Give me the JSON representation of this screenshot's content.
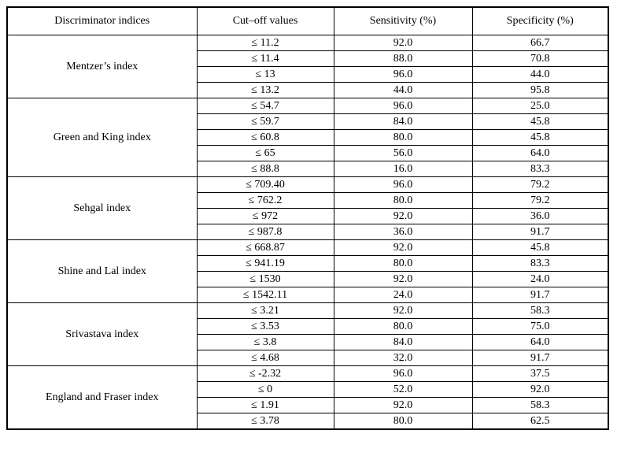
{
  "colors": {
    "border": "#000000",
    "background": "#ffffff",
    "text": "#000000"
  },
  "table": {
    "headers": {
      "indices": "Discriminator indices",
      "cutoff": "Cut–off values",
      "sensitivity": "Sensitivity (%)",
      "specificity": "Specificity (%)"
    },
    "groups": [
      {
        "index": "Mentzer’s index",
        "rows": [
          {
            "cutoff": "≤ 11.2",
            "sensitivity": "92.0",
            "specificity": "66.7"
          },
          {
            "cutoff": "≤ 11.4",
            "sensitivity": "88.0",
            "specificity": "70.8"
          },
          {
            "cutoff": "≤ 13",
            "sensitivity": "96.0",
            "specificity": "44.0"
          },
          {
            "cutoff": "≤ 13.2",
            "sensitivity": "44.0",
            "specificity": "95.8"
          }
        ]
      },
      {
        "index": "Green and King index",
        "rows": [
          {
            "cutoff": "≤ 54.7",
            "sensitivity": "96.0",
            "specificity": "25.0"
          },
          {
            "cutoff": "≤ 59.7",
            "sensitivity": "84.0",
            "specificity": "45.8"
          },
          {
            "cutoff": "≤ 60.8",
            "sensitivity": "80.0",
            "specificity": "45.8"
          },
          {
            "cutoff": "≤ 65",
            "sensitivity": "56.0",
            "specificity": "64.0"
          },
          {
            "cutoff": "≤ 88.8",
            "sensitivity": "16.0",
            "specificity": "83.3"
          }
        ]
      },
      {
        "index": "Sehgal index",
        "rows": [
          {
            "cutoff": "≤ 709.40",
            "sensitivity": "96.0",
            "specificity": "79.2"
          },
          {
            "cutoff": "≤ 762.2",
            "sensitivity": "80.0",
            "specificity": "79.2"
          },
          {
            "cutoff": "≤ 972",
            "sensitivity": "92.0",
            "specificity": "36.0"
          },
          {
            "cutoff": "≤ 987.8",
            "sensitivity": "36.0",
            "specificity": "91.7"
          }
        ]
      },
      {
        "index": "Shine and Lal index",
        "rows": [
          {
            "cutoff": "≤ 668.87",
            "sensitivity": "92.0",
            "specificity": "45.8"
          },
          {
            "cutoff": "≤ 941.19",
            "sensitivity": "80.0",
            "specificity": "83.3"
          },
          {
            "cutoff": "≤ 1530",
            "sensitivity": "92.0",
            "specificity": "24.0"
          },
          {
            "cutoff": "≤ 1542.11",
            "sensitivity": "24.0",
            "specificity": "91.7"
          }
        ]
      },
      {
        "index": "Srivastava index",
        "rows": [
          {
            "cutoff": "≤ 3.21",
            "sensitivity": "92.0",
            "specificity": "58.3"
          },
          {
            "cutoff": "≤ 3.53",
            "sensitivity": "80.0",
            "specificity": "75.0"
          },
          {
            "cutoff": "≤ 3.8",
            "sensitivity": "84.0",
            "specificity": "64.0"
          },
          {
            "cutoff": "≤ 4.68",
            "sensitivity": "32.0",
            "specificity": "91.7"
          }
        ]
      },
      {
        "index": "England and Fraser index",
        "rows": [
          {
            "cutoff": "≤ -2.32",
            "sensitivity": "96.0",
            "specificity": "37.5"
          },
          {
            "cutoff": "≤ 0",
            "sensitivity": "52.0",
            "specificity": "92.0"
          },
          {
            "cutoff": "≤ 1.91",
            "sensitivity": "92.0",
            "specificity": "58.3"
          },
          {
            "cutoff": "≤ 3.78",
            "sensitivity": "80.0",
            "specificity": "62.5"
          }
        ]
      }
    ]
  }
}
